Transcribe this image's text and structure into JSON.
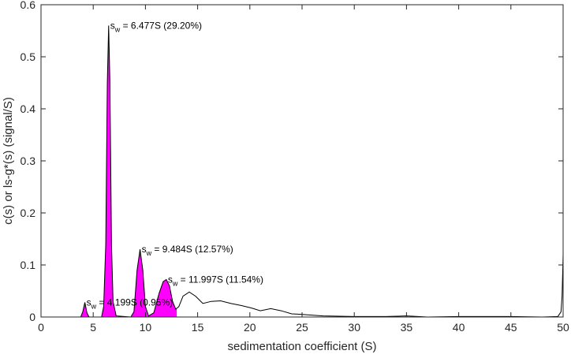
{
  "chart_data": {
    "type": "line",
    "title": "",
    "xlabel": "sedimentation coefficient (S)",
    "ylabel": "c(s) or ls-g*(s) (signal/S)",
    "xlim": [
      0,
      50
    ],
    "ylim": [
      0,
      0.6
    ],
    "x_ticks": [
      "0",
      "5",
      "10",
      "15",
      "20",
      "25",
      "30",
      "35",
      "40",
      "45",
      "50"
    ],
    "y_ticks": [
      "0",
      "0.1",
      "0.2",
      "0.3",
      "0.4",
      "0.5",
      "0.6"
    ],
    "grid": false,
    "line_color": "#000000",
    "fill_color": "#ff00ff",
    "series": [
      {
        "values": [
          [
            3.8,
            0
          ],
          [
            4.0,
            0.01
          ],
          [
            4.2,
            0.028
          ],
          [
            4.4,
            0.008
          ],
          [
            4.6,
            0
          ],
          [
            5.8,
            0
          ],
          [
            6.0,
            0.02
          ],
          [
            6.2,
            0.14
          ],
          [
            6.35,
            0.45
          ],
          [
            6.477,
            0.56
          ],
          [
            6.6,
            0.45
          ],
          [
            6.75,
            0.14
          ],
          [
            6.9,
            0.03
          ],
          [
            7.2,
            0.002
          ],
          [
            8.6,
            0
          ],
          [
            8.9,
            0.01
          ],
          [
            9.2,
            0.09
          ],
          [
            9.484,
            0.13
          ],
          [
            9.75,
            0.09
          ],
          [
            10.0,
            0.02
          ],
          [
            10.3,
            0.002
          ],
          [
            10.8,
            0.008
          ],
          [
            11.3,
            0.045
          ],
          [
            11.7,
            0.068
          ],
          [
            11.997,
            0.072
          ],
          [
            12.3,
            0.06
          ],
          [
            12.6,
            0.03
          ],
          [
            12.9,
            0.015
          ],
          [
            13.2,
            0.02
          ],
          [
            13.6,
            0.04
          ],
          [
            14.2,
            0.048
          ],
          [
            14.8,
            0.04
          ],
          [
            15.5,
            0.026
          ],
          [
            16.3,
            0.03
          ],
          [
            17.2,
            0.031
          ],
          [
            18.2,
            0.026
          ],
          [
            19.2,
            0.022
          ],
          [
            20.2,
            0.017
          ],
          [
            21.0,
            0.012
          ],
          [
            22.0,
            0.016
          ],
          [
            23.0,
            0.012
          ],
          [
            24.0,
            0.006
          ],
          [
            25.0,
            0.005
          ],
          [
            27.0,
            0.002
          ],
          [
            30.0,
            0.001
          ],
          [
            33.0,
            0.001
          ],
          [
            35.0,
            0.002
          ],
          [
            37.0,
            0
          ],
          [
            40.0,
            0.001
          ],
          [
            45.0,
            0.001
          ],
          [
            48.0,
            0
          ],
          [
            49.5,
            0.001
          ],
          [
            49.8,
            0.01
          ],
          [
            49.9,
            0.04
          ],
          [
            50.0,
            0.12
          ]
        ]
      }
    ],
    "shaded_peaks": [
      {
        "from": 3.8,
        "to": 4.6
      },
      {
        "from": 5.8,
        "to": 7.2
      },
      {
        "from": 8.6,
        "to": 10.3
      },
      {
        "from": 10.3,
        "to": 13.0
      }
    ],
    "annotations": [
      {
        "main": "s",
        "sub": "w",
        "text": " = 4.199S (0.95%)",
        "x": 4.199,
        "y": 0.028
      },
      {
        "main": "s",
        "sub": "w",
        "text": " = 6.477S (29.20%)",
        "x": 6.477,
        "y": 0.56
      },
      {
        "main": "s",
        "sub": "w",
        "text": " = 9.484S (12.57%)",
        "x": 9.484,
        "y": 0.13
      },
      {
        "main": "s",
        "sub": "w",
        "text": " = 11.997S (11.54%)",
        "x": 11.997,
        "y": 0.072
      }
    ]
  }
}
